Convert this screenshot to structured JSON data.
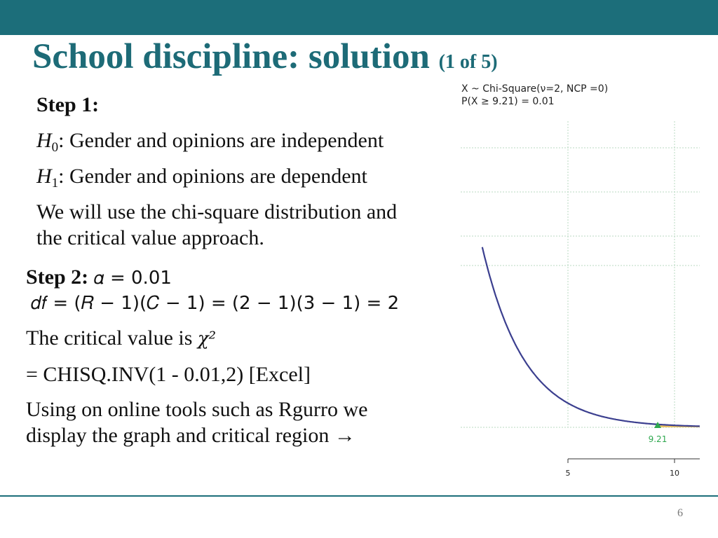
{
  "slide": {
    "title": "School discipline: solution",
    "title_sub": "(1 of 5)",
    "page_number": "6"
  },
  "step1": {
    "heading": "Step 1:",
    "h0_symbol": "H",
    "h0_sub": "0",
    "h0_text": ": Gender and opinions are independent",
    "h1_symbol": "H",
    "h1_sub": "1",
    "h1_text": ": Gender and opinions are dependent",
    "approach_line1": "We will use the chi-square distribution and",
    "approach_line2": "the critical value approach."
  },
  "step2": {
    "heading": "Step 2:",
    "alpha": "𝛼 = 0.01",
    "df": "𝑑𝑓 = (𝑅 − 1)(𝐶 − 1) = (2 − 1)(3 − 1) = 2",
    "critical_text": "The critical value is",
    "chi_symbol": "χ²",
    "excel_formula": "= CHISQ.INV(1 - 0.01,2) [Excel]",
    "tools_line1": "Using on online tools such as Rgurro we",
    "tools_line2": "display the graph and critical region →"
  },
  "chart_data": {
    "type": "line",
    "info_line1": "X ~ Chi-Square(ν=2, NCP =0)",
    "info_line2": "P(X ≥ 9.21) = 0.01",
    "xlim": [
      0,
      12.3
    ],
    "ylim": [
      0,
      0.5
    ],
    "x_ticks": [
      5,
      10
    ],
    "critical_value": 9.21,
    "critical_label": "9.21",
    "curve": "y = 0.5 * exp(-x/2)",
    "grid": true,
    "colors": {
      "curve": "#3b3f8f",
      "marker": "#2fa84f",
      "region": "#e7b84a",
      "grid": "#b8d8c2"
    }
  }
}
